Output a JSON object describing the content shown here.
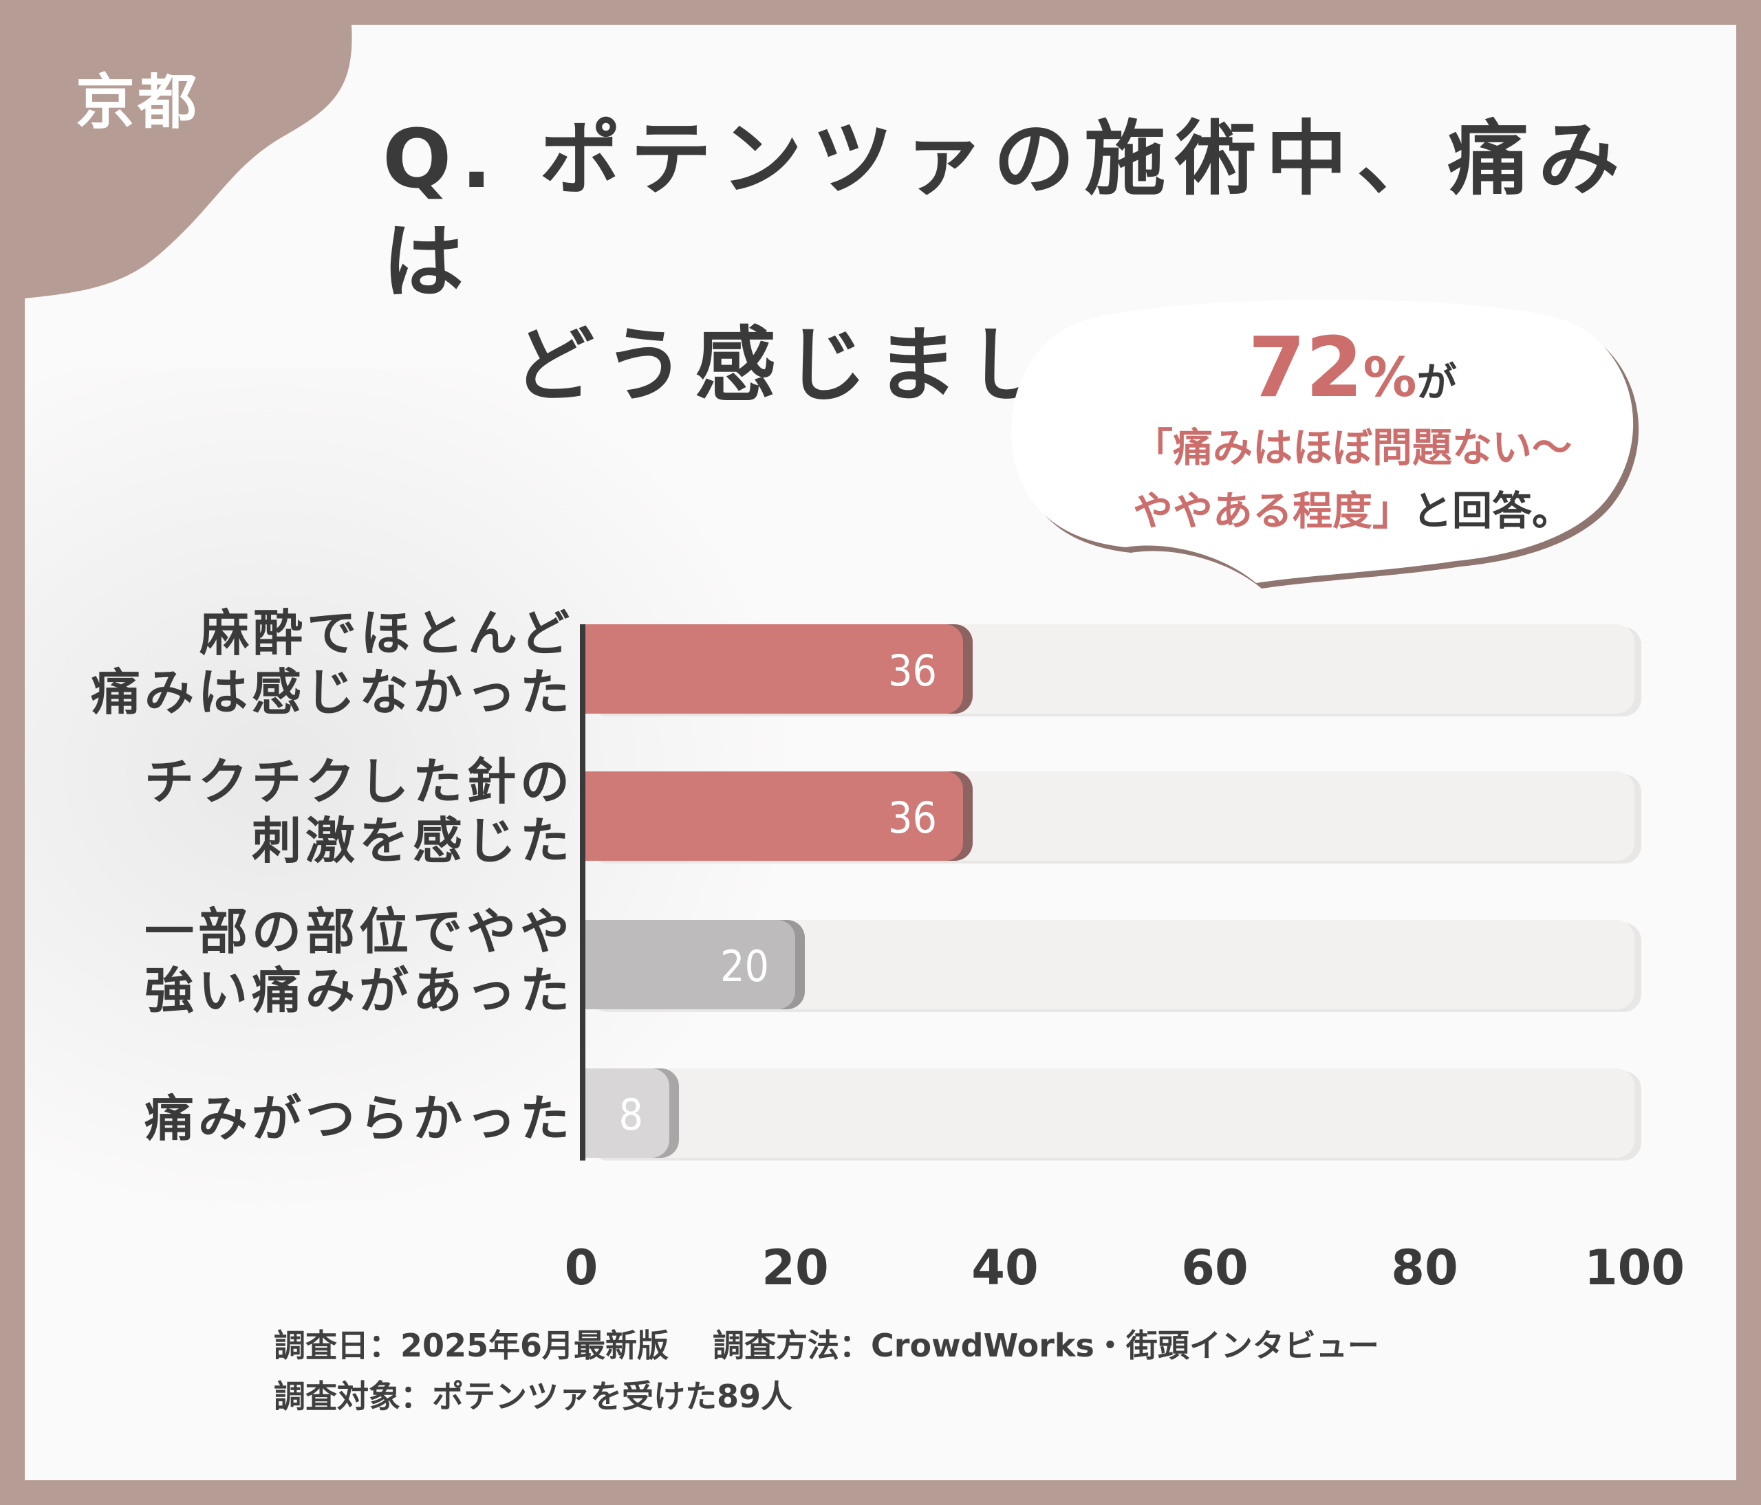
{
  "region_tag": "京都",
  "question": {
    "line1": "Q. ポテンツァの施術中、痛みは",
    "line2": "どう感じましたか？"
  },
  "callout": {
    "percent": "72",
    "percent_unit": "%",
    "particle": "が",
    "quote_line1": "「痛みはほぼ問題ない〜",
    "quote_line2": "ややある程度」",
    "suffix": "と回答。"
  },
  "chart_data": {
    "type": "bar",
    "orientation": "horizontal",
    "categories": [
      "麻酔でほとんど\n痛みは感じなかった",
      "チクチクした針の\n刺激を感じた",
      "一部の部位でやや\n強い痛みがあった",
      "痛みがつらかった"
    ],
    "values": [
      36,
      36,
      20,
      8
    ],
    "bar_colors": [
      "#cf7a76",
      "#cf7a76",
      "#bdbbbb",
      "#d8d6d6"
    ],
    "xlim": [
      0,
      100
    ],
    "x_ticks": [
      "0",
      "20",
      "40",
      "60",
      "80",
      "100"
    ],
    "grid": false
  },
  "footer": {
    "survey_date": "調査日：2025年6月最新版",
    "survey_method": "調査方法：CrowdWorks・街頭インタビュー",
    "survey_target": "調査対象：ポテンツァを受けた89人"
  }
}
